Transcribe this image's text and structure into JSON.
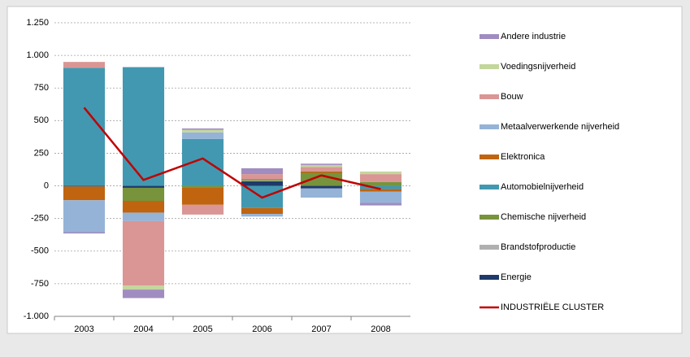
{
  "chart_data": {
    "type": "bar",
    "categories": [
      "2003",
      "2004",
      "2005",
      "2006",
      "2007",
      "2008"
    ],
    "ylim": [
      -1000,
      1250
    ],
    "yticks": [
      {
        "value": 1250,
        "label": "1.250"
      },
      {
        "value": 1000,
        "label": "1.000"
      },
      750,
      500,
      250,
      0,
      -250,
      -500,
      -750,
      {
        "value": -1000,
        "label": "-1.000"
      }
    ],
    "grid": true,
    "legend": "right",
    "series": [
      {
        "name": "Energie",
        "color": "#1f3a6a",
        "values": [
          -5,
          -15,
          0,
          35,
          -20,
          0
        ]
      },
      {
        "name": "Brandstofproductie",
        "color": "#b0b0b0",
        "values": [
          0,
          0,
          0,
          5,
          0,
          0
        ]
      },
      {
        "name": "Chemische nijverheid",
        "color": "#77933c",
        "values": [
          0,
          -100,
          -10,
          10,
          100,
          30
        ]
      },
      {
        "name": "Automobielnijverheid",
        "color": "#4298b0",
        "values": [
          905,
          910,
          360,
          -170,
          0,
          -25
        ]
      },
      {
        "name": "Elektronica",
        "color": "#c0640f",
        "values": [
          -105,
          -90,
          -135,
          -45,
          10,
          -20
        ]
      },
      {
        "name": "Metaalverwerkende  nijverheid",
        "color": "#95b3d7",
        "values": [
          -245,
          -65,
          50,
          -20,
          -70,
          -85
        ]
      },
      {
        "name": "Bouw",
        "color": "#d99694",
        "values": [
          45,
          -495,
          -75,
          40,
          35,
          60
        ]
      },
      {
        "name": "Voedingsnijverheid",
        "color": "#c3d69b",
        "values": [
          0,
          -30,
          20,
          0,
          15,
          20
        ]
      },
      {
        "name": "Andere industrie",
        "color": "#a08cc0",
        "values": [
          -10,
          -65,
          10,
          45,
          10,
          -20
        ]
      },
      {
        "name": "INDUSTRIËLE  CLUSTER",
        "type": "line",
        "color": "#c00000",
        "values": [
          600,
          45,
          210,
          -90,
          80,
          -25
        ]
      }
    ]
  }
}
